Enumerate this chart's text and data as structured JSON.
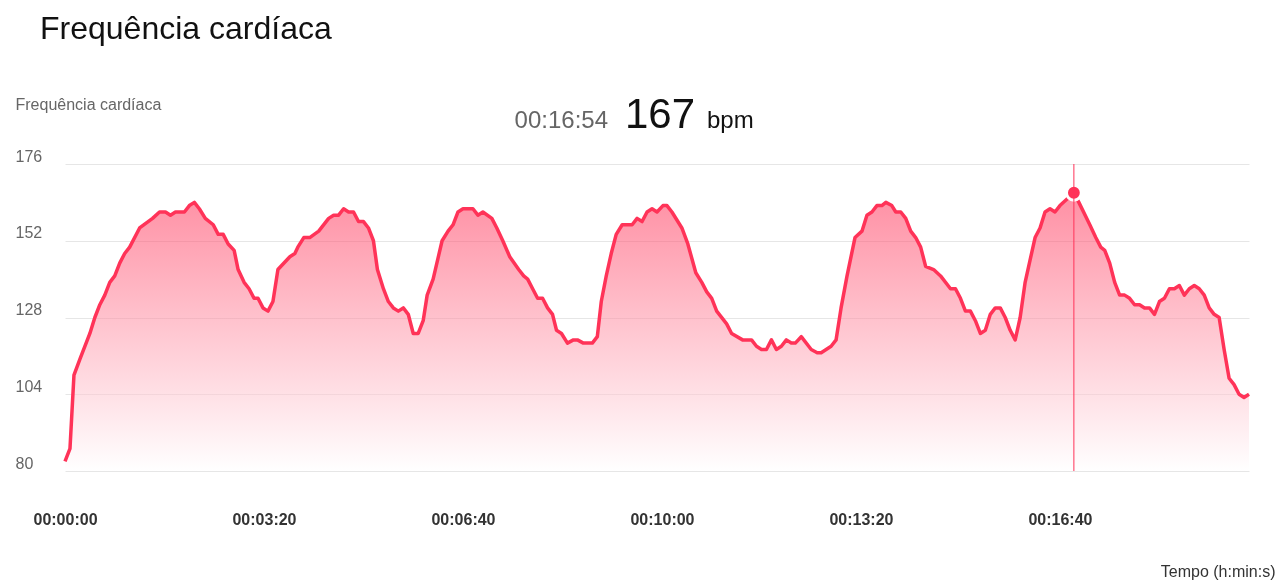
{
  "chart_data": {
    "type": "area",
    "title": "Frequência cardíaca",
    "ylabel": "Frequência cardíaca",
    "xlabel": "Tempo (h:min:s)",
    "x": [
      0,
      5,
      9,
      15,
      25,
      30,
      35,
      40,
      45,
      50,
      55,
      60,
      65,
      75,
      88,
      95,
      101,
      106,
      111,
      120,
      125,
      130,
      135,
      141,
      149,
      154,
      159,
      164,
      170,
      174,
      180,
      185,
      190,
      194,
      199,
      204,
      209,
      214,
      226,
      231,
      234,
      240,
      246,
      255,
      265,
      270,
      275,
      280,
      285,
      290,
      295,
      300,
      305,
      310,
      314,
      320,
      325,
      330,
      335,
      340,
      345,
      350,
      355,
      360,
      364,
      370,
      379,
      385,
      390,
      395,
      400,
      410,
      415,
      420,
      429,
      434,
      440,
      447,
      456,
      461,
      465,
      470,
      475,
      480,
      485,
      490,
      494,
      499,
      505,
      511,
      515,
      521,
      530,
      535,
      539,
      544,
      549,
      554,
      560,
      570,
      575,
      580,
      585,
      590,
      595,
      601,
      605,
      610,
      620,
      626,
      634,
      640,
      645,
      650,
      655,
      665,
      670,
      681,
      690,
      695,
      700,
      705,
      710,
      715,
      720,
      725,
      730,
      734,
      740,
      750,
      756,
      760,
      770,
      775,
      780,
      786,
      794,
      801,
      806,
      811,
      816,
      821,
      825,
      831,
      835,
      840,
      845,
      850,
      855,
      860,
      865,
      873,
      880,
      890,
      895,
      900,
      905,
      910,
      915,
      920,
      925,
      930,
      935,
      940,
      945,
      950,
      955,
      960,
      965,
      970,
      975,
      980,
      985,
      990,
      995,
      1000,
      1014,
      1019,
      1030,
      1036,
      1041,
      1045,
      1050,
      1055,
      1060,
      1065,
      1070,
      1075,
      1080,
      1085,
      1090,
      1095,
      1100,
      1105,
      1110,
      1115,
      1120,
      1125,
      1130,
      1135,
      1140,
      1145,
      1150,
      1155,
      1160,
      1165,
      1170,
      1175,
      1180,
      1185,
      1190
    ],
    "series": [
      {
        "type": "scatter",
        "color": "#ff3358",
        "x": [
          1014
        ],
        "values": [
          167
        ]
      },
      {
        "color": "#ff3358",
        "values": [
          83,
          87,
          110,
          115,
          123,
          128,
          132,
          135,
          139,
          141,
          145,
          148,
          150,
          156,
          159,
          161,
          161,
          160,
          161,
          161,
          163,
          164,
          162,
          159,
          157,
          154,
          154,
          151,
          149,
          143,
          139,
          137,
          134,
          134,
          131,
          130,
          133,
          143,
          147,
          148,
          150,
          153,
          153,
          155,
          159,
          160,
          160,
          162,
          161,
          161,
          158,
          158,
          156,
          152,
          143,
          137,
          133,
          131,
          130,
          131,
          129,
          123,
          123,
          127,
          135,
          140,
          152,
          155,
          157,
          161,
          162,
          162,
          160,
          161,
          159,
          156,
          152,
          147,
          143,
          141,
          140,
          137,
          134,
          134,
          131,
          129,
          124,
          123,
          120,
          121,
          121,
          120,
          120,
          122,
          133,
          141,
          148,
          154,
          157,
          157,
          159,
          158,
          161,
          162,
          161,
          163,
          163,
          161,
          156,
          151,
          142,
          139,
          136,
          134,
          130,
          126,
          123,
          121,
          121,
          119,
          118,
          118,
          121,
          118,
          119,
          121,
          120,
          120,
          122,
          118,
          117,
          117,
          119,
          121,
          131,
          141,
          153,
          155,
          160,
          161,
          163,
          163,
          164,
          163,
          161,
          161,
          159,
          155,
          153,
          150,
          144,
          143,
          141,
          137,
          137,
          134,
          130,
          130,
          127,
          123,
          124,
          129,
          131,
          131,
          128,
          124,
          121,
          128,
          139,
          146,
          153,
          156,
          161,
          162,
          161,
          163,
          167,
          164,
          157,
          153,
          150,
          149,
          145,
          139,
          135,
          135,
          134,
          132,
          132,
          131,
          131,
          129,
          133,
          134,
          137,
          137,
          138,
          135,
          137,
          138,
          137,
          135,
          131,
          129,
          128,
          118,
          109,
          107,
          104,
          103,
          104
        ]
      }
    ],
    "xlim": [
      0,
      1190
    ],
    "xticks": [
      {
        "value": 0,
        "label": "00:00:00"
      },
      {
        "value": 200,
        "label": "00:03:20"
      },
      {
        "value": 400,
        "label": "00:06:40"
      },
      {
        "value": 600,
        "label": "00:10:00"
      },
      {
        "value": 800,
        "label": "00:13:20"
      },
      {
        "value": 1000,
        "label": "00:16:40"
      }
    ],
    "ylim": [
      80,
      176
    ],
    "yticks": [
      80,
      104,
      128,
      152,
      176
    ],
    "grid": "y",
    "ref_lines": [
      {
        "axis": "x",
        "value": 1014,
        "color": "#ff3358"
      }
    ],
    "annotations": [
      "00:16:54",
      "167 bpm"
    ]
  }
}
